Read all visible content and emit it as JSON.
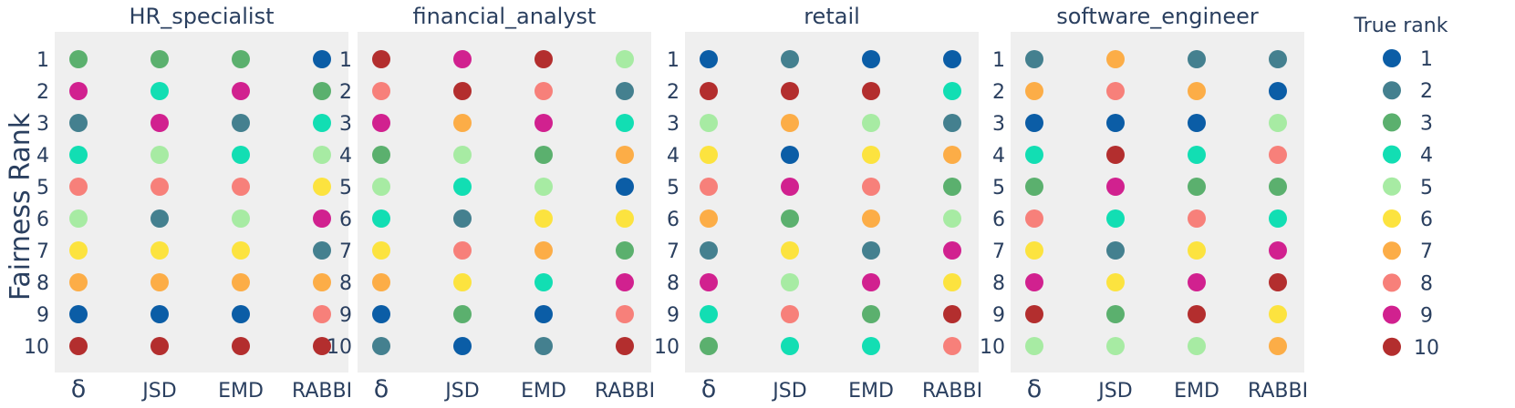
{
  "chart_data": {
    "type": "scatter",
    "ylabel": "Fairness Rank",
    "x_categories": [
      "δ",
      "JSD",
      "EMD",
      "RABBI"
    ],
    "y_ticks": [
      "1",
      "2",
      "3",
      "4",
      "5",
      "6",
      "7",
      "8",
      "9",
      "10"
    ],
    "legend": {
      "title": "True rank",
      "position": "right",
      "items": [
        {
          "label": "1",
          "color": "#0B5DA6"
        },
        {
          "label": "2",
          "color": "#44808F"
        },
        {
          "label": "3",
          "color": "#5BB06E"
        },
        {
          "label": "4",
          "color": "#12DEB3"
        },
        {
          "label": "5",
          "color": "#A7EBA3"
        },
        {
          "label": "6",
          "color": "#FCE33F"
        },
        {
          "label": "7",
          "color": "#FCAD47"
        },
        {
          "label": "8",
          "color": "#F7807A"
        },
        {
          "label": "9",
          "color": "#D1218F"
        },
        {
          "label": "10",
          "color": "#B32E2E"
        }
      ]
    },
    "panels": [
      {
        "title": "HR_specialist",
        "columns": {
          "δ": [
            3,
            9,
            2,
            4,
            8,
            5,
            6,
            7,
            1,
            10
          ],
          "JSD": [
            3,
            4,
            9,
            5,
            8,
            2,
            6,
            7,
            1,
            10
          ],
          "EMD": [
            3,
            9,
            2,
            4,
            8,
            5,
            6,
            7,
            1,
            10
          ],
          "RABBI": [
            1,
            3,
            4,
            5,
            6,
            9,
            2,
            7,
            8,
            10
          ]
        }
      },
      {
        "title": "financial_analyst",
        "columns": {
          "δ": [
            10,
            8,
            9,
            3,
            5,
            4,
            6,
            7,
            1,
            2
          ],
          "JSD": [
            9,
            10,
            7,
            5,
            4,
            2,
            8,
            6,
            3,
            1
          ],
          "EMD": [
            10,
            8,
            9,
            3,
            5,
            6,
            7,
            4,
            1,
            2
          ],
          "RABBI": [
            5,
            2,
            4,
            7,
            1,
            6,
            3,
            9,
            8,
            10
          ]
        }
      },
      {
        "title": "retail",
        "columns": {
          "δ": [
            1,
            10,
            5,
            6,
            8,
            7,
            2,
            9,
            4,
            3
          ],
          "JSD": [
            2,
            10,
            7,
            1,
            9,
            3,
            6,
            5,
            8,
            4
          ],
          "EMD": [
            1,
            10,
            5,
            6,
            8,
            7,
            2,
            9,
            3,
            4
          ],
          "RABBI": [
            1,
            4,
            2,
            7,
            3,
            5,
            9,
            6,
            10,
            8
          ]
        }
      },
      {
        "title": "software_engineer",
        "columns": {
          "δ": [
            2,
            7,
            1,
            4,
            3,
            8,
            6,
            9,
            10,
            5
          ],
          "JSD": [
            7,
            8,
            1,
            10,
            9,
            4,
            2,
            6,
            3,
            5
          ],
          "EMD": [
            2,
            7,
            1,
            4,
            3,
            8,
            6,
            9,
            10,
            5
          ],
          "RABBI": [
            2,
            1,
            5,
            8,
            3,
            4,
            9,
            10,
            6,
            7
          ]
        }
      }
    ]
  }
}
